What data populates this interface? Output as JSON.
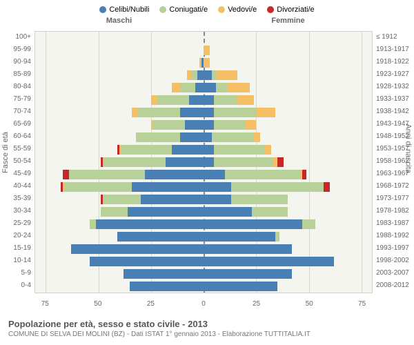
{
  "legend": [
    {
      "label": "Celibi/Nubili",
      "color": "#4a7fb5"
    },
    {
      "label": "Coniugati/e",
      "color": "#b8d199"
    },
    {
      "label": "Vedovi/e",
      "color": "#f5c065"
    },
    {
      "label": "Divorziati/e",
      "color": "#c62828"
    }
  ],
  "header_left": "Maschi",
  "header_right": "Femmine",
  "y_label_left": "Fasce di età",
  "y_label_right": "Anni di nascita",
  "title": "Popolazione per età, sesso e stato civile - 2013",
  "subtitle": "COMUNE DI SELVA DEI MOLINI (BZ) - Dati ISTAT 1° gennaio 2013 - Elaborazione TUTTITALIA.IT",
  "x_ticks": [
    75,
    50,
    25,
    0,
    25,
    50,
    75
  ],
  "x_max": 80,
  "colors": {
    "single": "#4a7fb5",
    "married": "#b8d199",
    "widowed": "#f5c065",
    "divorced": "#c62828",
    "plot_bg": "#f5f5f0",
    "grid": "#d8d8d0"
  },
  "rows": [
    {
      "age": "100+",
      "year": "≤ 1912",
      "m": {
        "s": 0,
        "c": 0,
        "w": 0,
        "d": 0
      },
      "f": {
        "s": 0,
        "c": 0,
        "w": 0,
        "d": 0
      }
    },
    {
      "age": "95-99",
      "year": "1913-1917",
      "m": {
        "s": 0,
        "c": 0,
        "w": 0,
        "d": 0
      },
      "f": {
        "s": 0,
        "c": 0,
        "w": 3,
        "d": 0
      }
    },
    {
      "age": "90-94",
      "year": "1918-1922",
      "m": {
        "s": 1,
        "c": 0,
        "w": 1,
        "d": 0
      },
      "f": {
        "s": 0,
        "c": 0,
        "w": 3,
        "d": 0
      }
    },
    {
      "age": "85-89",
      "year": "1923-1927",
      "m": {
        "s": 3,
        "c": 3,
        "w": 2,
        "d": 0
      },
      "f": {
        "s": 4,
        "c": 2,
        "w": 10,
        "d": 0
      }
    },
    {
      "age": "80-84",
      "year": "1928-1932",
      "m": {
        "s": 4,
        "c": 7,
        "w": 4,
        "d": 0
      },
      "f": {
        "s": 6,
        "c": 5,
        "w": 11,
        "d": 0
      }
    },
    {
      "age": "75-79",
      "year": "1933-1937",
      "m": {
        "s": 7,
        "c": 15,
        "w": 3,
        "d": 0
      },
      "f": {
        "s": 5,
        "c": 11,
        "w": 8,
        "d": 0
      }
    },
    {
      "age": "70-74",
      "year": "1938-1942",
      "m": {
        "s": 11,
        "c": 20,
        "w": 3,
        "d": 0
      },
      "f": {
        "s": 5,
        "c": 20,
        "w": 9,
        "d": 0
      }
    },
    {
      "age": "65-69",
      "year": "1943-1947",
      "m": {
        "s": 9,
        "c": 15,
        "w": 1,
        "d": 0
      },
      "f": {
        "s": 5,
        "c": 15,
        "w": 5,
        "d": 0
      }
    },
    {
      "age": "60-64",
      "year": "1948-1952",
      "m": {
        "s": 11,
        "c": 21,
        "w": 0,
        "d": 0
      },
      "f": {
        "s": 4,
        "c": 20,
        "w": 3,
        "d": 0
      }
    },
    {
      "age": "55-59",
      "year": "1953-1957",
      "m": {
        "s": 15,
        "c": 24,
        "w": 1,
        "d": 1
      },
      "f": {
        "s": 5,
        "c": 24,
        "w": 3,
        "d": 0
      }
    },
    {
      "age": "50-54",
      "year": "1958-1962",
      "m": {
        "s": 18,
        "c": 30,
        "w": 0,
        "d": 1
      },
      "f": {
        "s": 5,
        "c": 28,
        "w": 2,
        "d": 3
      }
    },
    {
      "age": "45-49",
      "year": "1963-1967",
      "m": {
        "s": 28,
        "c": 36,
        "w": 0,
        "d": 3
      },
      "f": {
        "s": 10,
        "c": 36,
        "w": 1,
        "d": 2
      }
    },
    {
      "age": "40-44",
      "year": "1968-1972",
      "m": {
        "s": 34,
        "c": 32,
        "w": 1,
        "d": 1
      },
      "f": {
        "s": 13,
        "c": 44,
        "w": 0,
        "d": 3
      }
    },
    {
      "age": "35-39",
      "year": "1973-1977",
      "m": {
        "s": 30,
        "c": 18,
        "w": 0,
        "d": 1
      },
      "f": {
        "s": 13,
        "c": 27,
        "w": 0,
        "d": 0
      }
    },
    {
      "age": "30-34",
      "year": "1978-1982",
      "m": {
        "s": 36,
        "c": 13,
        "w": 0,
        "d": 0
      },
      "f": {
        "s": 23,
        "c": 17,
        "w": 0,
        "d": 0
      }
    },
    {
      "age": "25-29",
      "year": "1983-1987",
      "m": {
        "s": 51,
        "c": 3,
        "w": 0,
        "d": 0
      },
      "f": {
        "s": 47,
        "c": 6,
        "w": 0,
        "d": 0
      }
    },
    {
      "age": "20-24",
      "year": "1988-1992",
      "m": {
        "s": 41,
        "c": 0,
        "w": 0,
        "d": 0
      },
      "f": {
        "s": 34,
        "c": 2,
        "w": 0,
        "d": 0
      }
    },
    {
      "age": "15-19",
      "year": "1993-1997",
      "m": {
        "s": 63,
        "c": 0,
        "w": 0,
        "d": 0
      },
      "f": {
        "s": 42,
        "c": 0,
        "w": 0,
        "d": 0
      }
    },
    {
      "age": "10-14",
      "year": "1998-2002",
      "m": {
        "s": 54,
        "c": 0,
        "w": 0,
        "d": 0
      },
      "f": {
        "s": 62,
        "c": 0,
        "w": 0,
        "d": 0
      }
    },
    {
      "age": "5-9",
      "year": "2003-2007",
      "m": {
        "s": 38,
        "c": 0,
        "w": 0,
        "d": 0
      },
      "f": {
        "s": 42,
        "c": 0,
        "w": 0,
        "d": 0
      }
    },
    {
      "age": "0-4",
      "year": "2008-2012",
      "m": {
        "s": 35,
        "c": 0,
        "w": 0,
        "d": 0
      },
      "f": {
        "s": 35,
        "c": 0,
        "w": 0,
        "d": 0
      }
    }
  ]
}
